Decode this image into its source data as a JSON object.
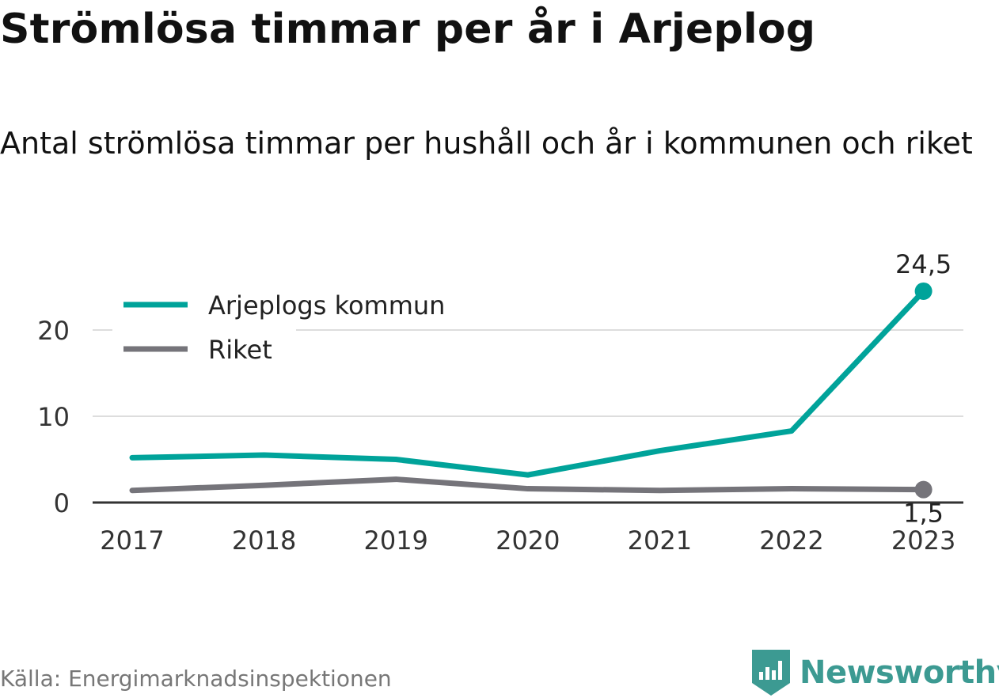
{
  "header": {
    "title": "Strömlösa timmar per år i Arjeplog",
    "subtitle": "Antal strömlösa timmar per hushåll och år i kommunen och riket"
  },
  "footer": {
    "source": "Källa: Energimarknadsinspektionen",
    "brand": "Newsworthy",
    "brand_icon": "newsworthy-logo-icon"
  },
  "colors": {
    "arjeplog": "#00a39a",
    "riket": "#75747a",
    "grid": "#dddddd",
    "axis": "#333333",
    "brand": "#3c9a92"
  },
  "chart_data": {
    "type": "line",
    "title": "Strömlösa timmar per år i Arjeplog",
    "subtitle": "Antal strömlösa timmar per hushåll och år i kommunen och riket",
    "xlabel": "",
    "ylabel": "",
    "categories": [
      "2017",
      "2018",
      "2019",
      "2020",
      "2021",
      "2022",
      "2023"
    ],
    "ylim": [
      0,
      25
    ],
    "yticks": [
      "0",
      "10",
      "20"
    ],
    "grid": true,
    "legend_position": "top-left",
    "series": [
      {
        "name": "Arjeplogs kommun",
        "values": [
          5.2,
          5.5,
          5.0,
          3.2,
          6.0,
          8.3,
          24.5
        ],
        "end_label": "24,5"
      },
      {
        "name": "Riket",
        "values": [
          1.4,
          2.0,
          2.7,
          1.6,
          1.4,
          1.6,
          1.5
        ],
        "end_label": "1,5"
      }
    ]
  }
}
